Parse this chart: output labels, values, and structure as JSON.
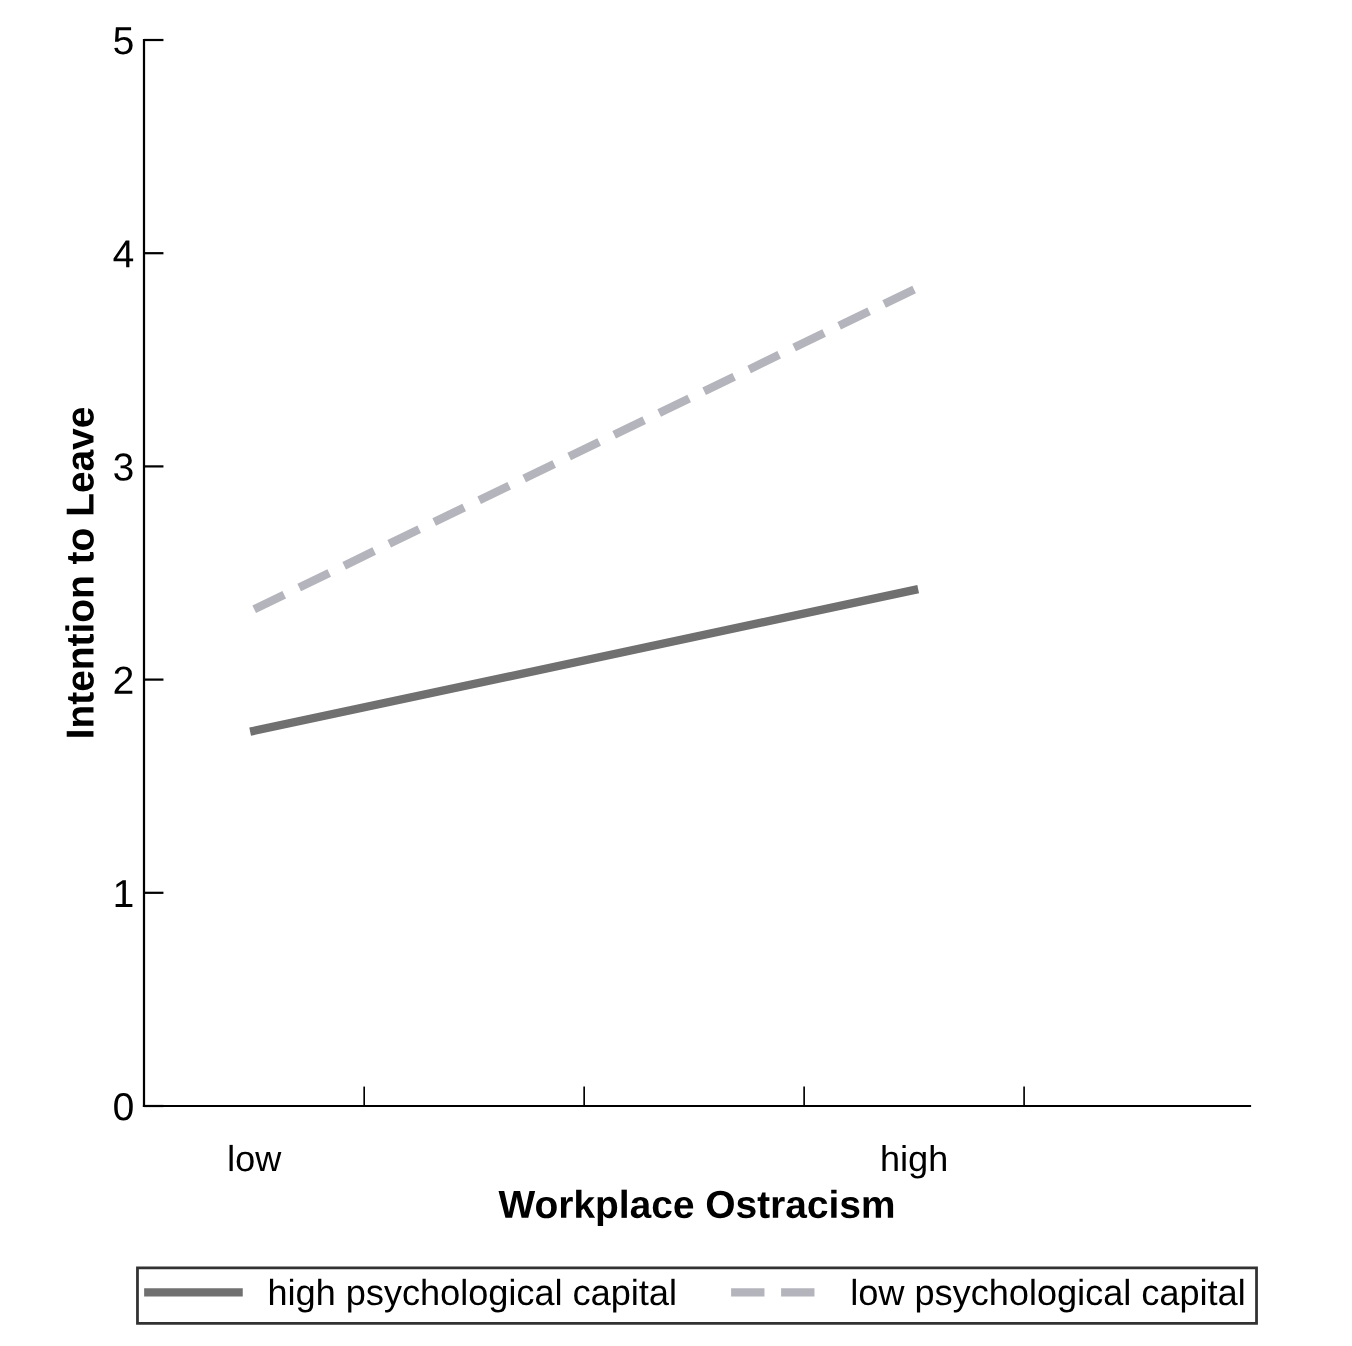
{
  "chart_data": {
    "type": "line",
    "xlabel": "Workplace Ostracism",
    "ylabel": "Intention to Leave",
    "categories": [
      "low",
      "high"
    ],
    "ylim": [
      0,
      5
    ],
    "yticks": [
      0,
      1,
      2,
      3,
      4,
      5
    ],
    "series": [
      {
        "name": "high psychological capital",
        "color": "#707070",
        "values": [
          1.76,
          2.42
        ],
        "line_style": "solid"
      },
      {
        "name": "low psychological capital",
        "color": "#b4b4bc",
        "values": [
          2.33,
          3.83
        ],
        "line_style": "dashed"
      }
    ],
    "legend": "bottom",
    "grid": false,
    "marker": "none"
  }
}
